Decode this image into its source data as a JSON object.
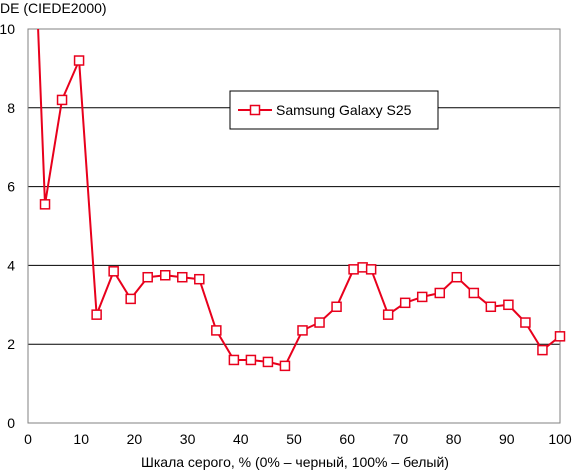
{
  "chart_data": {
    "type": "line",
    "title": "",
    "ylabel": "DE (CIEDE2000)",
    "xlabel": "Шкала серого, % (0% – черный, 100% – белый)",
    "xlim": [
      0,
      100
    ],
    "ylim": [
      0,
      10
    ],
    "x_ticks": [
      "0",
      "10",
      "20",
      "30",
      "40",
      "50",
      "60",
      "70",
      "80",
      "90",
      "100"
    ],
    "y_ticks": [
      "0",
      "2",
      "4",
      "6",
      "8",
      "10"
    ],
    "grid": "horizontal",
    "legend_position": "top-right",
    "series": [
      {
        "name": "Samsung Galaxy S25",
        "color": "#e8001c",
        "marker": "hollow-square",
        "x": [
          1.9,
          3.2,
          6.4,
          9.6,
          12.9,
          16.1,
          19.3,
          22.5,
          25.8,
          29.0,
          32.2,
          35.4,
          38.7,
          41.9,
          45.1,
          48.3,
          51.6,
          54.8,
          58.0,
          61.2,
          62.9,
          64.5,
          67.7,
          70.9,
          74.1,
          77.4,
          80.6,
          83.8,
          87.0,
          90.3,
          93.5,
          96.7,
          100
        ],
        "y": [
          10.0,
          5.55,
          8.2,
          9.2,
          2.75,
          3.85,
          3.15,
          3.7,
          3.75,
          3.7,
          3.65,
          2.35,
          1.6,
          1.6,
          1.55,
          1.45,
          2.35,
          2.55,
          2.95,
          3.9,
          3.95,
          3.9,
          2.75,
          3.05,
          3.2,
          3.3,
          3.7,
          3.3,
          2.95,
          3.0,
          2.55,
          1.85,
          2.2
        ],
        "markers": [
          false,
          true,
          true,
          true,
          true,
          true,
          true,
          true,
          true,
          true,
          true,
          true,
          true,
          true,
          true,
          true,
          true,
          true,
          true,
          true,
          true,
          true,
          true,
          true,
          true,
          true,
          true,
          true,
          true,
          true,
          true,
          true,
          true
        ]
      }
    ]
  }
}
